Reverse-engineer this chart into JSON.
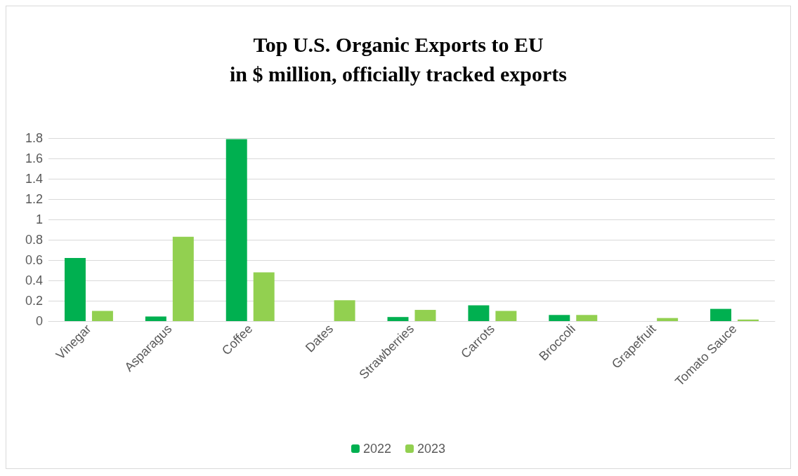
{
  "chart_data": {
    "type": "bar",
    "title": "Top U.S. Organic Exports to EU\nin $ million, officially tracked exports",
    "categories": [
      "Vinegar",
      "Asparagus",
      "Coffee",
      "Dates",
      "Strawberries",
      "Carrots",
      "Broccoli",
      "Grapefruit",
      "Tomato Sauce"
    ],
    "series": [
      {
        "name": "2022",
        "color": "#00b050",
        "values": [
          0.62,
          0.045,
          1.79,
          null,
          0.04,
          0.155,
          0.06,
          null,
          0.12
        ]
      },
      {
        "name": "2023",
        "color": "#92d050",
        "values": [
          0.1,
          0.83,
          0.48,
          0.205,
          0.11,
          0.1,
          0.06,
          0.03,
          0.015
        ]
      }
    ],
    "ylim": [
      0,
      1.8
    ],
    "yticks": [
      0,
      0.2,
      0.4,
      0.6,
      0.8,
      1,
      1.2,
      1.4,
      1.6,
      1.8
    ],
    "grid": "y",
    "legend": "bottom"
  }
}
